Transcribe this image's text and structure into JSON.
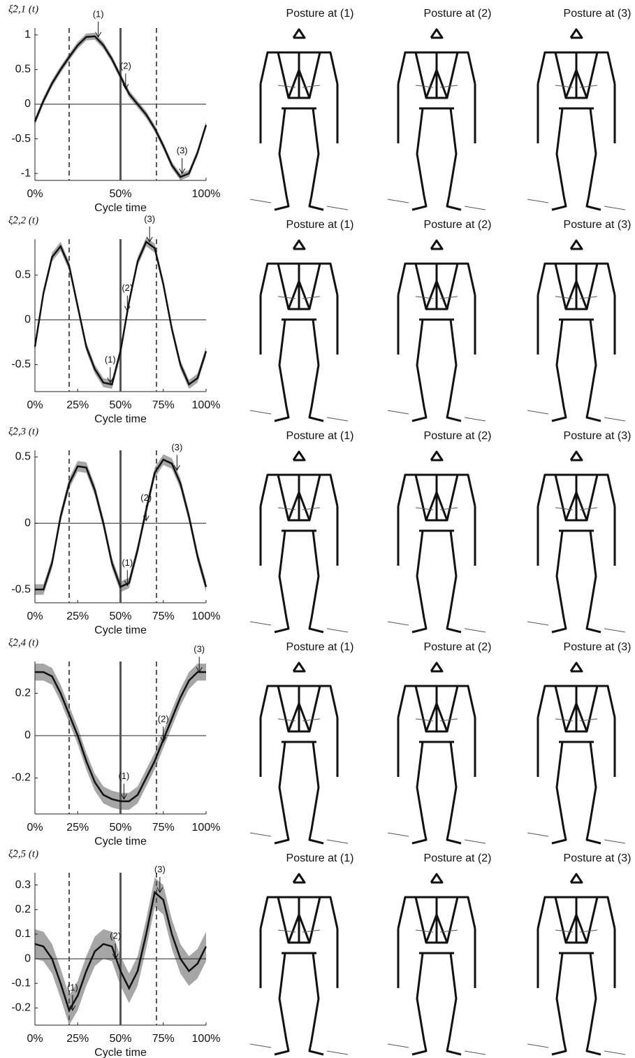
{
  "chart_data": [
    {
      "type": "line",
      "title": "ξ̂2,1 (t)",
      "xlabel": "Cycle time",
      "x": [
        0,
        5,
        10,
        15,
        20,
        25,
        30,
        35,
        40,
        45,
        50,
        55,
        60,
        65,
        70,
        75,
        80,
        85,
        90,
        95,
        100
      ],
      "values": [
        -0.25,
        0.05,
        0.3,
        0.5,
        0.68,
        0.85,
        0.97,
        0.98,
        0.85,
        0.65,
        0.4,
        0.15,
        0.0,
        -0.15,
        -0.35,
        -0.6,
        -0.88,
        -1.05,
        -1.0,
        -0.7,
        -0.3
      ],
      "color": "#111111",
      "band": 0.05,
      "band_color": "#a6a6a6",
      "xlim": [
        0,
        100
      ],
      "xticks": [
        {
          "value": 0,
          "label": "0%"
        },
        {
          "value": 50,
          "label": "50%"
        },
        {
          "value": 100,
          "label": "100%"
        }
      ],
      "ylim": [
        -1.1,
        1.1
      ],
      "yticks": [
        -1,
        -0.5,
        0,
        0.5,
        1
      ],
      "vlines": [
        {
          "x": 20,
          "style": "dashed"
        },
        {
          "x": 50,
          "style": "solid"
        },
        {
          "x": 71,
          "style": "dashed"
        }
      ],
      "annotations": [
        {
          "text": "(1)",
          "x": 37,
          "y": 0.97
        },
        {
          "text": "(2)",
          "x": 53,
          "y": 0.22
        },
        {
          "text": "(3)",
          "x": 86,
          "y": -1.0
        }
      ],
      "posture_titles": [
        "Posture at (1)",
        "Posture at (2)",
        "Posture at (3)"
      ]
    },
    {
      "type": "line",
      "title": "ξ̂2,2 (t)",
      "xlabel": "Cycle time",
      "x": [
        0,
        5,
        10,
        15,
        20,
        25,
        30,
        35,
        40,
        45,
        50,
        55,
        60,
        65,
        70,
        75,
        80,
        85,
        90,
        95,
        100
      ],
      "values": [
        -0.3,
        0.3,
        0.7,
        0.82,
        0.6,
        0.15,
        -0.3,
        -0.55,
        -0.7,
        -0.72,
        -0.35,
        0.2,
        0.65,
        0.87,
        0.8,
        0.4,
        -0.1,
        -0.5,
        -0.72,
        -0.65,
        -0.35
      ],
      "color": "#111111",
      "band": 0.05,
      "band_color": "#a6a6a6",
      "xlim": [
        0,
        100
      ],
      "xticks": [
        {
          "value": 0,
          "label": "0%"
        },
        {
          "value": 25,
          "label": "25%"
        },
        {
          "value": 50,
          "label": "50%"
        },
        {
          "value": 75,
          "label": "75%"
        },
        {
          "value": 100,
          "label": "100%"
        }
      ],
      "ylim": [
        -0.8,
        0.9
      ],
      "yticks": [
        -0.5,
        0,
        0.5
      ],
      "vlines": [
        {
          "x": 20,
          "style": "dashed"
        },
        {
          "x": 50,
          "style": "solid"
        },
        {
          "x": 71,
          "style": "dashed"
        }
      ],
      "annotations": [
        {
          "text": "(1)",
          "x": 44,
          "y": -0.7
        },
        {
          "text": "(2)",
          "x": 54,
          "y": 0.1
        },
        {
          "text": "(3)",
          "x": 67,
          "y": 0.87
        }
      ],
      "posture_titles": [
        "Posture at (1)",
        "Posture at (2)",
        "Posture at (3)"
      ]
    },
    {
      "type": "line",
      "title": "ξ̂2,3 (t)",
      "xlabel": "Cycle time",
      "x": [
        0,
        5,
        10,
        15,
        20,
        25,
        30,
        35,
        40,
        45,
        50,
        55,
        60,
        65,
        70,
        75,
        80,
        85,
        90,
        95,
        100
      ],
      "values": [
        -0.5,
        -0.5,
        -0.3,
        0.05,
        0.3,
        0.43,
        0.42,
        0.25,
        0.0,
        -0.3,
        -0.48,
        -0.45,
        -0.2,
        0.1,
        0.38,
        0.48,
        0.45,
        0.3,
        0.05,
        -0.25,
        -0.48
      ],
      "color": "#111111",
      "band": 0.04,
      "band_color": "#a6a6a6",
      "xlim": [
        0,
        100
      ],
      "xticks": [
        {
          "value": 0,
          "label": "0%"
        },
        {
          "value": 25,
          "label": "25%"
        },
        {
          "value": 50,
          "label": "50%"
        },
        {
          "value": 75,
          "label": "75%"
        },
        {
          "value": 100,
          "label": "100%"
        }
      ],
      "ylim": [
        -0.6,
        0.55
      ],
      "yticks": [
        -0.5,
        0,
        0.5
      ],
      "vlines": [
        {
          "x": 20,
          "style": "dashed"
        },
        {
          "x": 50,
          "style": "solid"
        },
        {
          "x": 71,
          "style": "dashed"
        }
      ],
      "annotations": [
        {
          "text": "(1)",
          "x": 54,
          "y": -0.47
        },
        {
          "text": "(2)",
          "x": 65,
          "y": 0.02
        },
        {
          "text": "(3)",
          "x": 83,
          "y": 0.4
        }
      ],
      "posture_titles": [
        "Posture at (1)",
        "Posture at (2)",
        "Posture at (3)"
      ]
    },
    {
      "type": "line",
      "title": "ξ̂2,4 (t)",
      "xlabel": "Cycle time",
      "x": [
        0,
        5,
        10,
        15,
        20,
        25,
        30,
        35,
        40,
        45,
        50,
        55,
        60,
        65,
        70,
        75,
        80,
        85,
        90,
        95,
        100
      ],
      "values": [
        0.3,
        0.3,
        0.28,
        0.2,
        0.1,
        0.0,
        -0.12,
        -0.22,
        -0.28,
        -0.3,
        -0.31,
        -0.31,
        -0.28,
        -0.2,
        -0.12,
        -0.02,
        0.08,
        0.18,
        0.26,
        0.3,
        0.3
      ],
      "color": "#111111",
      "band": 0.04,
      "band_color": "#a6a6a6",
      "xlim": [
        0,
        100
      ],
      "xticks": [
        {
          "value": 0,
          "label": "0%"
        },
        {
          "value": 25,
          "label": "25%"
        },
        {
          "value": 50,
          "label": "50%"
        },
        {
          "value": 75,
          "label": "75%"
        },
        {
          "value": 100,
          "label": "100%"
        }
      ],
      "ylim": [
        -0.37,
        0.35
      ],
      "yticks": [
        -0.2,
        0,
        0.2
      ],
      "vlines": [
        {
          "x": 20,
          "style": "dashed"
        },
        {
          "x": 50,
          "style": "solid"
        },
        {
          "x": 71,
          "style": "dashed"
        }
      ],
      "annotations": [
        {
          "text": "(1)",
          "x": 52,
          "y": -0.3
        },
        {
          "text": "(2)",
          "x": 75,
          "y": -0.03
        },
        {
          "text": "(3)",
          "x": 96,
          "y": 0.3
        }
      ],
      "posture_titles": [
        "Posture at (1)",
        "Posture at (2)",
        "Posture at (3)"
      ]
    },
    {
      "type": "line",
      "title": "ξ̂2,5 (t)",
      "xlabel": "Cycle time",
      "x": [
        0,
        5,
        10,
        15,
        20,
        25,
        30,
        35,
        40,
        45,
        50,
        55,
        60,
        65,
        70,
        75,
        80,
        85,
        90,
        95,
        100
      ],
      "values": [
        0.06,
        0.05,
        0.0,
        -0.1,
        -0.21,
        -0.15,
        -0.05,
        0.03,
        0.06,
        0.05,
        -0.05,
        -0.12,
        -0.05,
        0.1,
        0.27,
        0.24,
        0.1,
        0.0,
        -0.05,
        -0.02,
        0.05
      ],
      "color": "#111111",
      "band": 0.06,
      "band_color": "#a6a6a6",
      "xlim": [
        0,
        100
      ],
      "xticks": [
        {
          "value": 0,
          "label": "0%"
        },
        {
          "value": 25,
          "label": "25%"
        },
        {
          "value": 50,
          "label": "50%"
        },
        {
          "value": 75,
          "label": "75%"
        },
        {
          "value": 100,
          "label": "100%"
        }
      ],
      "ylim": [
        -0.27,
        0.35
      ],
      "yticks": [
        -0.2,
        -0.1,
        0,
        0.1,
        0.2,
        0.3
      ],
      "vlines": [
        {
          "x": 20,
          "style": "dashed"
        },
        {
          "x": 50,
          "style": "solid"
        },
        {
          "x": 71,
          "style": "dashed"
        }
      ],
      "annotations": [
        {
          "text": "(1)",
          "x": 22,
          "y": -0.21
        },
        {
          "text": "(2)",
          "x": 47,
          "y": 0.0
        },
        {
          "text": "(3)",
          "x": 73,
          "y": 0.27
        }
      ],
      "posture_titles": [
        "Posture at (1)",
        "Posture at (2)",
        "Posture at (3)"
      ]
    }
  ]
}
